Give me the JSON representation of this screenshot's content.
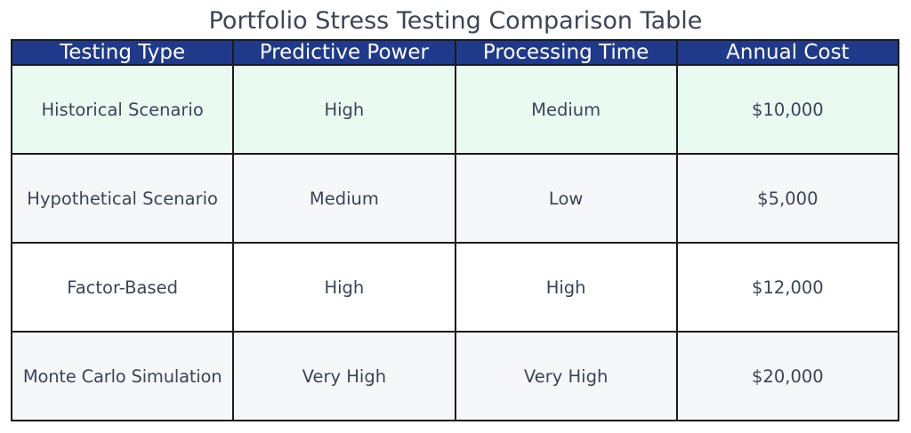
{
  "title": "Portfolio Stress Testing Comparison Table",
  "colors": {
    "header_bg": "#1f3a8a",
    "header_text": "#ffffff",
    "highlight_row": "#e9faf1",
    "alt_row": "#f6f7f9",
    "text": "#3b4456"
  },
  "chart_data": {
    "type": "table",
    "title": "Portfolio Stress Testing Comparison Table",
    "columns": [
      "Testing Type",
      "Predictive Power",
      "Processing Time",
      "Annual Cost"
    ],
    "rows": [
      [
        "Historical Scenario",
        "High",
        "Medium",
        "$10,000"
      ],
      [
        "Hypothetical Scenario",
        "Medium",
        "Low",
        "$5,000"
      ],
      [
        "Factor-Based",
        "High",
        "High",
        "$12,000"
      ],
      [
        "Monte Carlo Simulation",
        "Very High",
        "Very High",
        "$20,000"
      ]
    ]
  }
}
